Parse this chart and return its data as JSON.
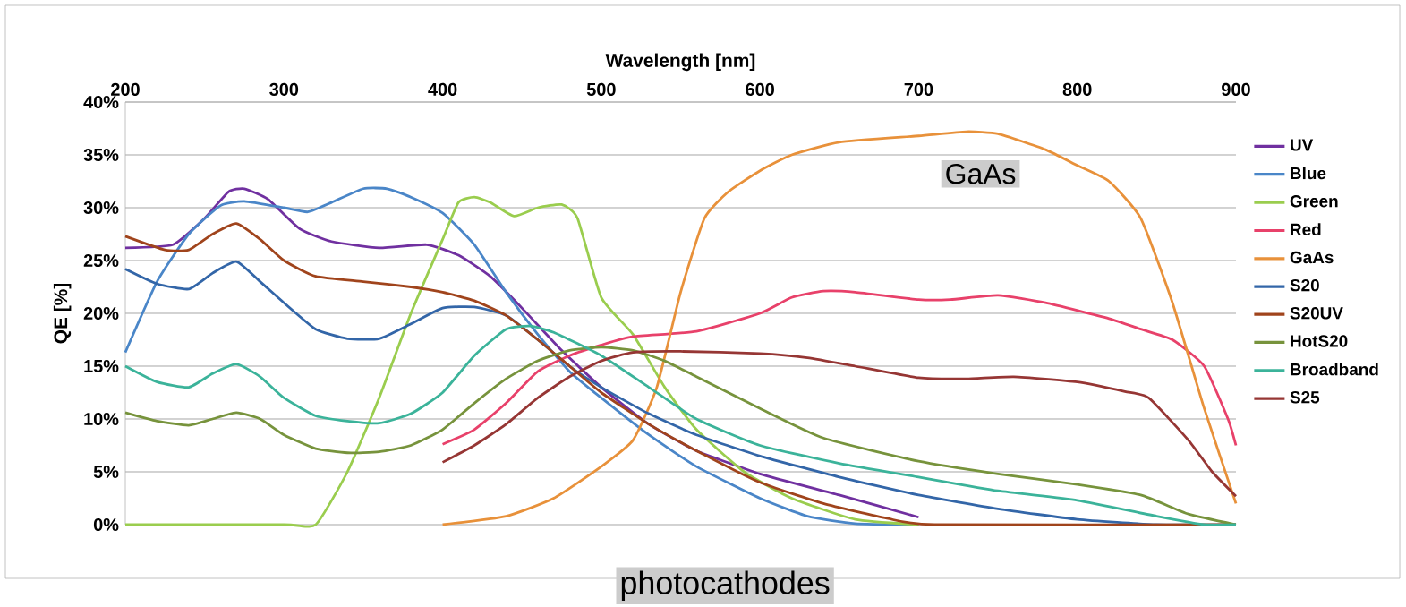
{
  "chart_data": {
    "type": "line",
    "xlabel": "Wavelength [nm]",
    "ylabel": "QE [%]",
    "xlim": [
      200,
      900
    ],
    "xticks": [
      200,
      300,
      400,
      500,
      600,
      700,
      800,
      900
    ],
    "ylim": [
      0,
      40
    ],
    "yticks": [
      {
        "value": 0,
        "label": "0%"
      },
      {
        "value": 5,
        "label": "5%"
      },
      {
        "value": 10,
        "label": "10%"
      },
      {
        "value": 15,
        "label": "15%"
      },
      {
        "value": 20,
        "label": "20%"
      },
      {
        "value": 25,
        "label": "25%"
      },
      {
        "value": 30,
        "label": "30%"
      },
      {
        "value": 35,
        "label": "35%"
      },
      {
        "value": 40,
        "label": "40%"
      }
    ],
    "grid": "y",
    "legend": "right",
    "marker": "none",
    "line_style": "solid",
    "annotations": [
      "GaAs",
      "photocathodes"
    ],
    "series": [
      {
        "name": "UV",
        "color": "#7030a0",
        "x": [
          200,
          230,
          250,
          265,
          275,
          290,
          310,
          330,
          360,
          390,
          410,
          430,
          450,
          475,
          500,
          530,
          560,
          600,
          650,
          700
        ],
        "values": [
          26.2,
          26.5,
          29,
          31.5,
          31.8,
          30.8,
          28,
          26.8,
          26.2,
          26.5,
          25.5,
          23.5,
          20.5,
          16.5,
          13,
          9.5,
          7,
          4.8,
          2.8,
          0.7
        ]
      },
      {
        "name": "Blue",
        "color": "#4a86c8",
        "x": [
          200,
          220,
          240,
          260,
          275,
          300,
          315,
          330,
          350,
          365,
          380,
          400,
          420,
          440,
          460,
          480,
          500,
          530,
          560,
          600,
          630,
          660,
          700
        ],
        "values": [
          16.3,
          23,
          27.5,
          30.2,
          30.6,
          30,
          29.6,
          30.5,
          31.8,
          31.8,
          31,
          29.5,
          26.5,
          22,
          18,
          14.5,
          12,
          8.5,
          5.5,
          2.5,
          0.8,
          0.1,
          0
        ]
      },
      {
        "name": "Green",
        "color": "#9acd4e",
        "x": [
          200,
          300,
          320,
          340,
          360,
          380,
          400,
          410,
          420,
          430,
          445,
          460,
          475,
          485,
          500,
          520,
          540,
          560,
          590,
          620,
          660,
          700
        ],
        "values": [
          0,
          0,
          0,
          5,
          12,
          20,
          27,
          30.5,
          31,
          30.5,
          29.2,
          30,
          30.3,
          29,
          21.5,
          18,
          13,
          9,
          5,
          2.5,
          0.5,
          0
        ]
      },
      {
        "name": "Red",
        "color": "#e8416a",
        "x": [
          400,
          420,
          440,
          460,
          480,
          500,
          520,
          560,
          600,
          620,
          640,
          660,
          700,
          720,
          750,
          780,
          820,
          840,
          860,
          880,
          895,
          900
        ],
        "values": [
          7.6,
          9,
          11.5,
          14.5,
          16,
          17,
          17.8,
          18.3,
          20,
          21.5,
          22.1,
          22,
          21.3,
          21.3,
          21.7,
          21,
          19.5,
          18.5,
          17.5,
          15,
          10,
          7.5
        ]
      },
      {
        "name": "GaAs",
        "color": "#e8913a",
        "x": [
          400,
          440,
          470,
          500,
          520,
          535,
          550,
          565,
          580,
          600,
          620,
          650,
          700,
          730,
          750,
          780,
          800,
          820,
          840,
          860,
          880,
          900
        ],
        "values": [
          0,
          0.8,
          2.5,
          5.5,
          8,
          13,
          22,
          29,
          31.5,
          33.5,
          35,
          36.2,
          36.8,
          37.2,
          37,
          35.5,
          34,
          32.5,
          29,
          21,
          11,
          2
        ]
      },
      {
        "name": "S20",
        "color": "#3366a8",
        "x": [
          200,
          220,
          240,
          255,
          270,
          285,
          300,
          320,
          340,
          360,
          380,
          400,
          420,
          440,
          460,
          480,
          500,
          530,
          560,
          600,
          650,
          700,
          750,
          800,
          850,
          900
        ],
        "values": [
          24.2,
          22.8,
          22.3,
          23.8,
          24.9,
          23,
          21,
          18.5,
          17.6,
          17.6,
          19,
          20.5,
          20.6,
          19.8,
          17.5,
          15,
          13,
          10.5,
          8.5,
          6.5,
          4.5,
          2.8,
          1.5,
          0.5,
          0,
          0
        ]
      },
      {
        "name": "S20UV",
        "color": "#a0441c",
        "x": [
          200,
          225,
          240,
          255,
          270,
          285,
          300,
          320,
          350,
          380,
          400,
          420,
          440,
          460,
          480,
          500,
          530,
          560,
          600,
          640,
          680,
          710,
          900
        ],
        "values": [
          27.3,
          26,
          26,
          27.5,
          28.5,
          27,
          25,
          23.5,
          23,
          22.5,
          22,
          21.2,
          19.8,
          17.5,
          15,
          12.5,
          9.5,
          7,
          4,
          2,
          0.6,
          0,
          0
        ]
      },
      {
        "name": "HotS20",
        "color": "#77933c",
        "x": [
          200,
          220,
          240,
          255,
          270,
          285,
          300,
          320,
          340,
          360,
          380,
          400,
          420,
          440,
          460,
          480,
          500,
          520,
          540,
          560,
          600,
          640,
          700,
          750,
          800,
          840,
          870,
          900
        ],
        "values": [
          10.6,
          9.8,
          9.4,
          10,
          10.6,
          10,
          8.5,
          7.2,
          6.8,
          6.9,
          7.5,
          9,
          11.5,
          13.8,
          15.5,
          16.5,
          16.8,
          16.5,
          15.5,
          14,
          11,
          8.2,
          6,
          4.8,
          3.8,
          2.8,
          1,
          0
        ]
      },
      {
        "name": "Broadband",
        "color": "#3bb39a",
        "x": [
          200,
          220,
          240,
          255,
          270,
          285,
          300,
          320,
          340,
          360,
          380,
          400,
          420,
          440,
          455,
          470,
          500,
          530,
          560,
          600,
          650,
          700,
          750,
          800,
          850,
          880,
          900
        ],
        "values": [
          15,
          13.5,
          13,
          14.3,
          15.2,
          14,
          12,
          10.3,
          9.8,
          9.6,
          10.5,
          12.5,
          16,
          18.5,
          18.8,
          18.2,
          16,
          13,
          10,
          7.5,
          5.8,
          4.5,
          3.2,
          2.3,
          0.8,
          0,
          0
        ]
      },
      {
        "name": "S25",
        "color": "#963634",
        "x": [
          400,
          420,
          440,
          460,
          480,
          500,
          520,
          550,
          600,
          630,
          660,
          700,
          730,
          760,
          800,
          830,
          845,
          870,
          885,
          900
        ],
        "values": [
          5.9,
          7.5,
          9.5,
          12,
          14,
          15.5,
          16.3,
          16.4,
          16.2,
          15.8,
          15,
          13.9,
          13.8,
          14,
          13.5,
          12.6,
          12,
          8,
          5,
          2.7
        ]
      }
    ]
  }
}
